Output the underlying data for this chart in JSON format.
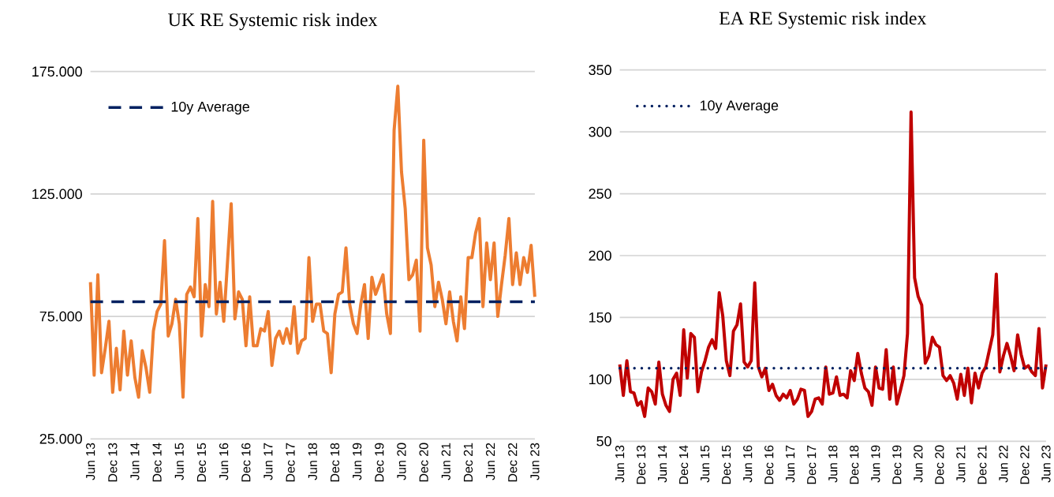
{
  "chart_data": [
    {
      "type": "line",
      "title": "UK RE Systemic risk index",
      "categories": [
        "Jun 13",
        null,
        null,
        null,
        null,
        null,
        "Dec 13",
        null,
        null,
        null,
        null,
        null,
        "Jun 14",
        null,
        null,
        null,
        null,
        null,
        "Dec 14",
        null,
        null,
        null,
        null,
        null,
        "Jun 15",
        null,
        null,
        null,
        null,
        null,
        "Dec 15",
        null,
        null,
        null,
        null,
        null,
        "Jun 16",
        null,
        null,
        null,
        null,
        null,
        "Dec 16",
        null,
        null,
        null,
        null,
        null,
        "Jun 17",
        null,
        null,
        null,
        null,
        null,
        "Dec 17",
        null,
        null,
        null,
        null,
        null,
        "Jun 18",
        null,
        null,
        null,
        null,
        null,
        "Dec 18",
        null,
        null,
        null,
        null,
        null,
        "Jun 19",
        null,
        null,
        null,
        null,
        null,
        "Dec 19",
        null,
        null,
        null,
        null,
        null,
        "Jun 20",
        null,
        null,
        null,
        null,
        null,
        "Dec 20",
        null,
        null,
        null,
        null,
        null,
        "Jun 21",
        null,
        null,
        null,
        null,
        null,
        "Dec 21",
        null,
        null,
        null,
        null,
        null,
        "Jun 22",
        null,
        null,
        null,
        null,
        null,
        "Dec 22",
        null,
        null,
        null,
        null,
        null,
        "Jun 23"
      ],
      "series": [
        {
          "color": "#ed7d31",
          "values": [
            89000,
            51000,
            92000,
            52000,
            62000,
            73000,
            44000,
            62000,
            45000,
            69000,
            51000,
            65000,
            50000,
            42000,
            61000,
            54000,
            44000,
            69000,
            77000,
            80000,
            106000,
            67000,
            72000,
            82000,
            72000,
            42000,
            84000,
            87000,
            83000,
            115000,
            67000,
            88000,
            79000,
            122000,
            76000,
            89000,
            73000,
            97000,
            121000,
            74000,
            85000,
            82000,
            63000,
            83000,
            63000,
            63000,
            70000,
            69000,
            77000,
            55000,
            66000,
            69000,
            64000,
            70000,
            64000,
            79000,
            60000,
            65000,
            66000,
            99000,
            73000,
            80000,
            80000,
            69000,
            68000,
            52000,
            76000,
            84000,
            85000,
            103000,
            80000,
            72000,
            68000,
            80000,
            88000,
            66000,
            91000,
            84000,
            88000,
            92000,
            76000,
            68000,
            151000,
            169000,
            134000,
            119000,
            90000,
            92000,
            98000,
            69000,
            147000,
            103000,
            96000,
            79000,
            89000,
            82000,
            72000,
            85000,
            73000,
            65000,
            83000,
            70000,
            99000,
            99000,
            109000,
            115000,
            79000,
            105000,
            90000,
            105000,
            75000,
            88000,
            100000,
            115000,
            88000,
            101000,
            88000,
            99000,
            93000,
            104000,
            83000
          ]
        }
      ],
      "ylim": [
        25000,
        175000
      ],
      "yticks": [
        {
          "value": 25000,
          "label": "25.000"
        },
        {
          "value": 75000,
          "label": "75.000"
        },
        {
          "value": 125000,
          "label": "125.000"
        },
        {
          "value": 175000,
          "label": "175.000"
        }
      ],
      "grid": "y",
      "legend": "top left",
      "ref_lines": [
        {
          "axis": "y",
          "value": 81000,
          "label": "10y Average",
          "color": "#002060",
          "line_style": "dashed"
        }
      ]
    },
    {
      "type": "line",
      "title": "EA RE Systemic risk index",
      "categories": [
        "Jun 13",
        null,
        null,
        null,
        null,
        null,
        "Dec 13",
        null,
        null,
        null,
        null,
        null,
        "Jun 14",
        null,
        null,
        null,
        null,
        null,
        "Dec 14",
        null,
        null,
        null,
        null,
        null,
        "Jun 15",
        null,
        null,
        null,
        null,
        null,
        "Dec 15",
        null,
        null,
        null,
        null,
        null,
        "Jun 16",
        null,
        null,
        null,
        null,
        null,
        "Dec 16",
        null,
        null,
        null,
        null,
        null,
        "Jun 17",
        null,
        null,
        null,
        null,
        null,
        "Dec 17",
        null,
        null,
        null,
        null,
        null,
        "Jun 18",
        null,
        null,
        null,
        null,
        null,
        "Dec 18",
        null,
        null,
        null,
        null,
        null,
        "Jun 19",
        null,
        null,
        null,
        null,
        null,
        "Dec 19",
        null,
        null,
        null,
        null,
        null,
        "Jun 20",
        null,
        null,
        null,
        null,
        null,
        "Dec 20",
        null,
        null,
        null,
        null,
        null,
        "Jun 21",
        null,
        null,
        null,
        null,
        null,
        "Dec 21",
        null,
        null,
        null,
        null,
        null,
        "Jun 22",
        null,
        null,
        null,
        null,
        null,
        "Dec 22",
        null,
        null,
        null,
        null,
        null,
        "Jun 23"
      ],
      "series": [
        {
          "color": "#c00000",
          "values": [
            112,
            87,
            115,
            90,
            89,
            79,
            82,
            70,
            93,
            90,
            80,
            114,
            88,
            79,
            74,
            100,
            105,
            87,
            140,
            101,
            137,
            134,
            90,
            106,
            115,
            126,
            132,
            125,
            170,
            151,
            115,
            103,
            139,
            144,
            161,
            114,
            110,
            115,
            178,
            110,
            102,
            109,
            91,
            96,
            87,
            83,
            88,
            85,
            91,
            80,
            84,
            92,
            91,
            70,
            74,
            84,
            85,
            80,
            110,
            88,
            89,
            102,
            87,
            88,
            85,
            107,
            99,
            121,
            105,
            93,
            90,
            79,
            110,
            93,
            92,
            124,
            84,
            110,
            80,
            91,
            103,
            137,
            316,
            182,
            167,
            160,
            113,
            119,
            134,
            128,
            126,
            103,
            99,
            103,
            97,
            84,
            104,
            87,
            109,
            81,
            105,
            93,
            105,
            110,
            123,
            136,
            185,
            106,
            119,
            129,
            119,
            107,
            136,
            120,
            109,
            111,
            106,
            103,
            141,
            93,
            112
          ]
        }
      ],
      "ylim": [
        50,
        350
      ],
      "yticks": [
        50,
        100,
        150,
        200,
        250,
        300,
        350
      ],
      "grid": "y",
      "legend": "top left",
      "ref_lines": [
        {
          "axis": "y",
          "value": 109,
          "label": "10y Average",
          "color": "#002060",
          "line_style": "dotted"
        }
      ]
    }
  ]
}
